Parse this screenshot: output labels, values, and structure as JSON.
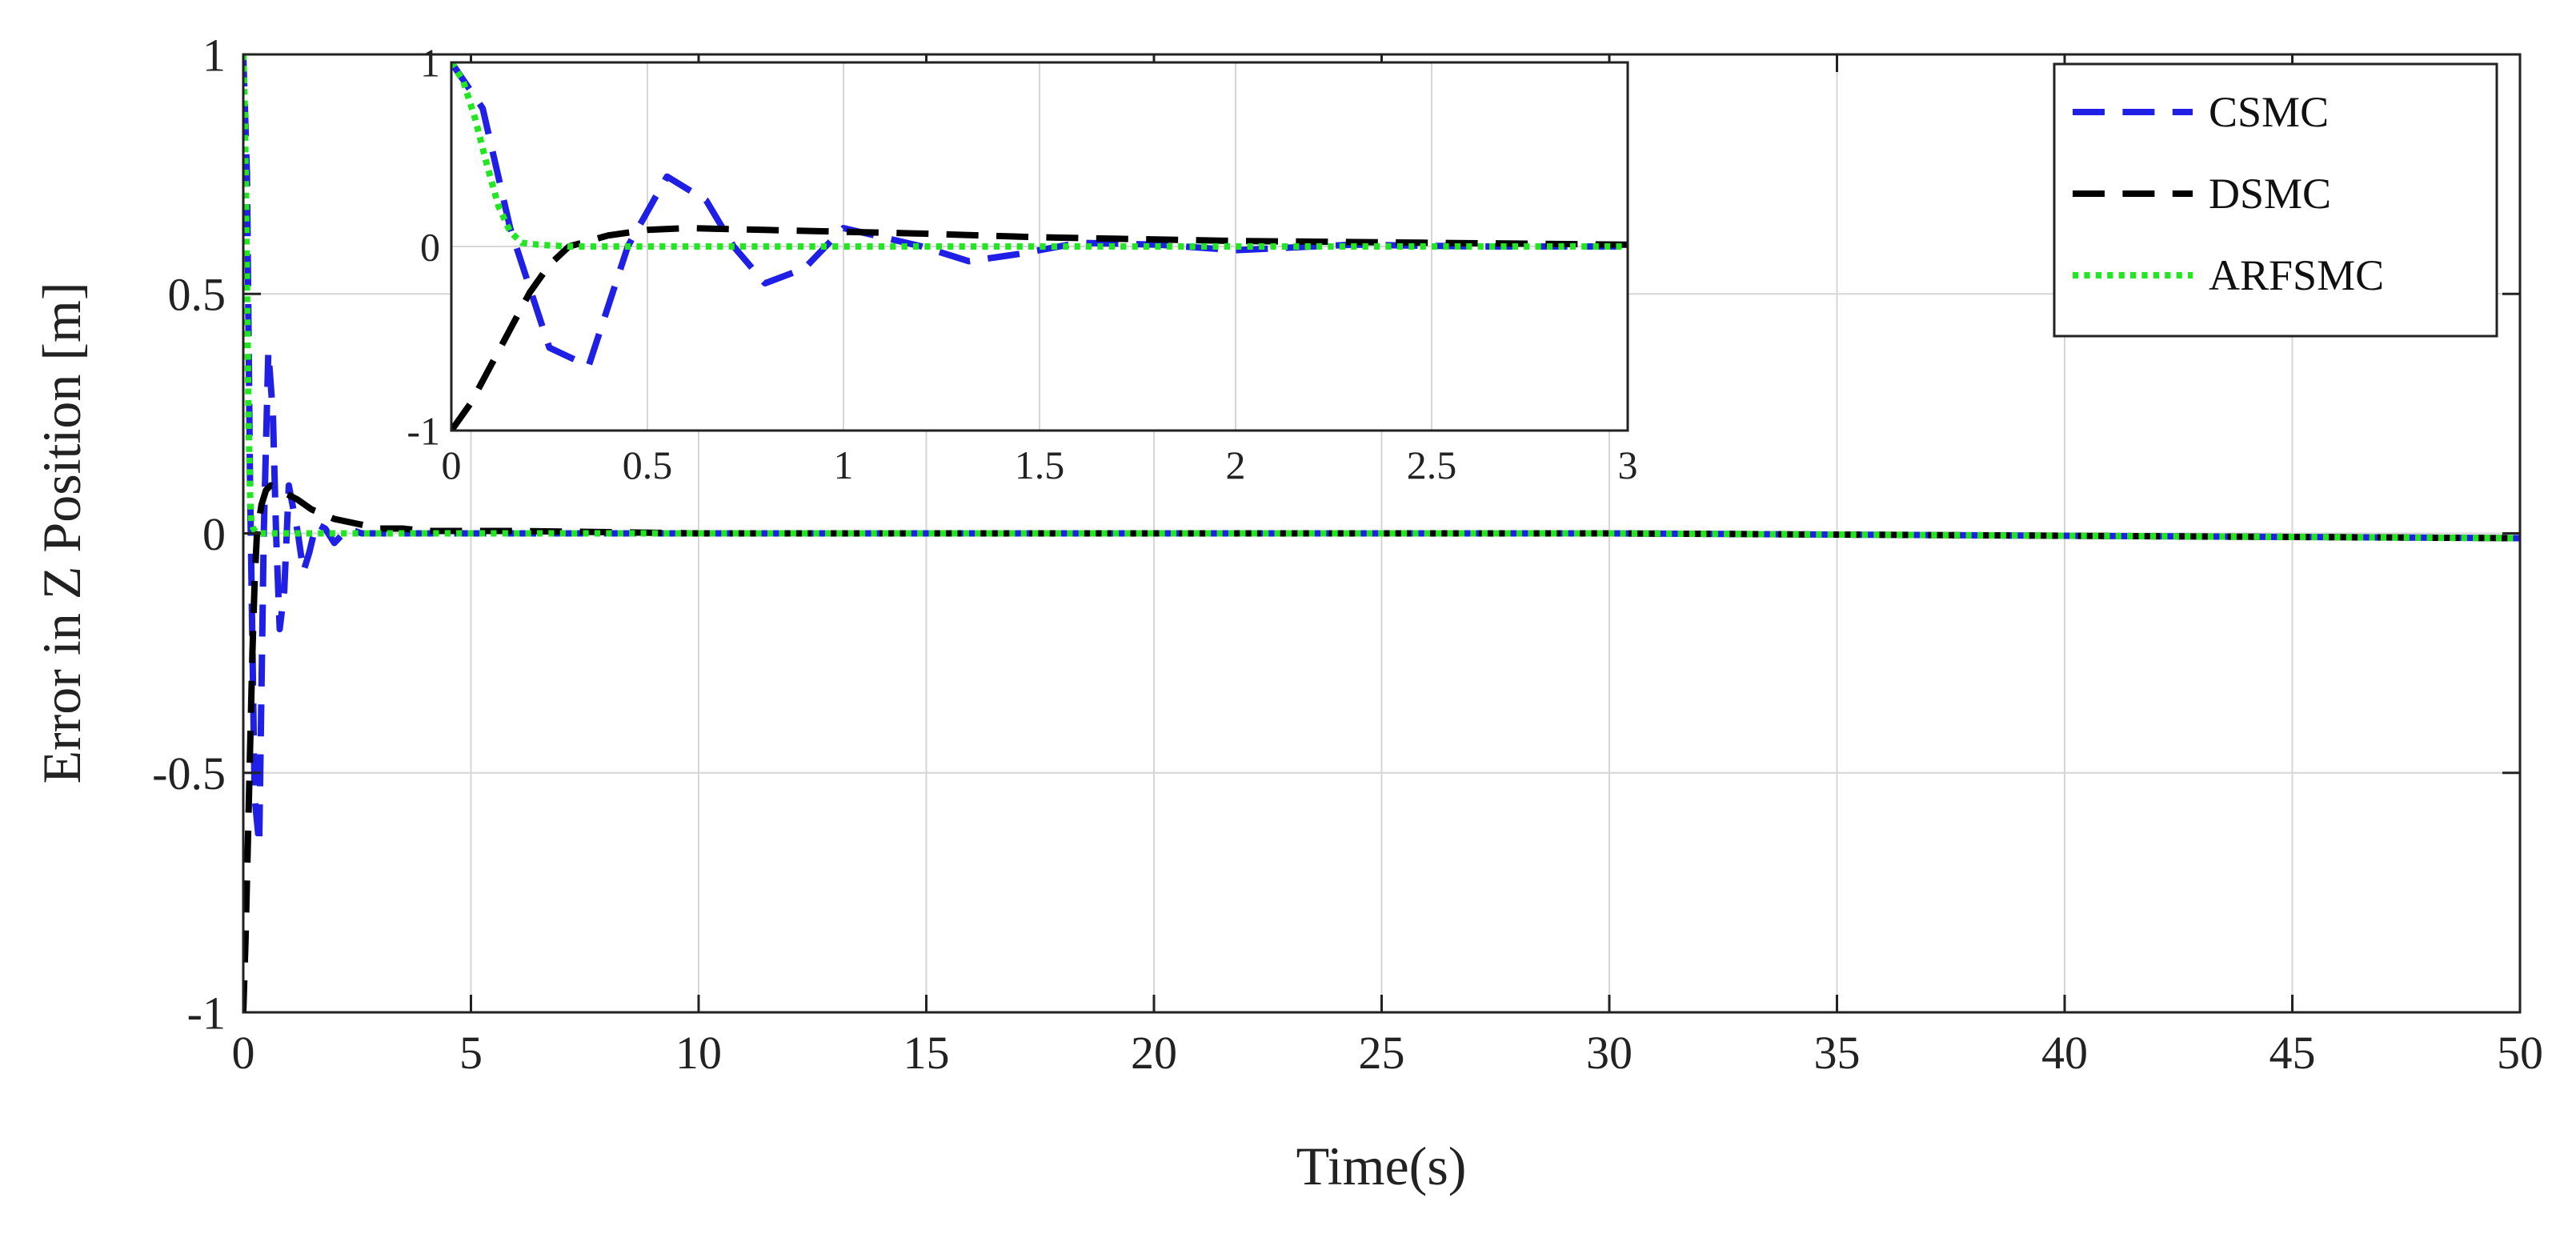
{
  "chart_data": [
    {
      "type": "line",
      "role": "main",
      "title": "",
      "xlabel": "Time(s)",
      "ylabel": "Error in Z Position [m]",
      "xlim": [
        0,
        50
      ],
      "ylim": [
        -1,
        1
      ],
      "xticks": [
        "0",
        "5",
        "10",
        "15",
        "20",
        "25",
        "30",
        "35",
        "40",
        "45",
        "50"
      ],
      "yticks": [
        "-1",
        "-0.5",
        "0",
        "0.5",
        "1"
      ],
      "grid": true,
      "legend": "top-right",
      "series": [
        {
          "name": "CSMC",
          "color": "#1f1fe6",
          "dash": "dashed",
          "x": [
            0,
            0.08,
            0.15,
            0.25,
            0.35,
            0.45,
            0.55,
            0.65,
            0.72,
            0.8,
            0.9,
            1.0,
            1.1,
            1.2,
            1.32,
            1.45,
            1.6,
            1.8,
            2.0,
            2.3,
            2.6,
            3.0,
            4,
            6,
            10,
            20,
            30,
            40,
            50
          ],
          "y": [
            1.0,
            0.75,
            0.1,
            -0.55,
            -0.65,
            0.0,
            0.38,
            0.25,
            0.0,
            -0.2,
            -0.12,
            0.1,
            0.05,
            0.0,
            -0.08,
            -0.04,
            0.02,
            0.01,
            -0.02,
            0.01,
            0.0,
            0.0,
            0.0,
            0.0,
            0.0,
            0.0,
            0.0,
            -0.005,
            -0.01
          ]
        },
        {
          "name": "DSMC",
          "color": "#000000",
          "dash": "dashed",
          "x": [
            0,
            0.05,
            0.1,
            0.15,
            0.2,
            0.25,
            0.3,
            0.4,
            0.5,
            0.6,
            0.8,
            1.0,
            1.2,
            1.5,
            2.0,
            2.5,
            3.0,
            3.5,
            4,
            6,
            10,
            20,
            30,
            40,
            50
          ],
          "y": [
            -1.0,
            -0.85,
            -0.65,
            -0.45,
            -0.25,
            -0.1,
            0.0,
            0.06,
            0.09,
            0.1,
            0.09,
            0.08,
            0.07,
            0.05,
            0.03,
            0.02,
            0.01,
            0.01,
            0.005,
            0.005,
            0.0,
            0.0,
            0.0,
            -0.005,
            -0.01
          ]
        },
        {
          "name": "ARFSMC",
          "color": "#22e622",
          "dash": "dotted",
          "x": [
            0,
            0.03,
            0.06,
            0.09,
            0.12,
            0.15,
            0.18,
            0.22,
            0.3,
            0.5,
            1,
            2,
            3,
            5,
            10,
            20,
            30,
            40,
            50
          ],
          "y": [
            1.0,
            0.9,
            0.7,
            0.45,
            0.22,
            0.08,
            0.02,
            0.01,
            0.0,
            0.0,
            0.0,
            0.0,
            0.0,
            0.0,
            0.0,
            0.0,
            0.0,
            -0.005,
            -0.01
          ]
        }
      ]
    },
    {
      "type": "line",
      "role": "inset",
      "title": "",
      "xlim": [
        0,
        3
      ],
      "ylim": [
        -1,
        1
      ],
      "xticks": [
        "0",
        "0.5",
        "1",
        "1.5",
        "2",
        "2.5",
        "3"
      ],
      "yticks": [
        "-1",
        "0",
        "1"
      ],
      "grid": true
    }
  ]
}
